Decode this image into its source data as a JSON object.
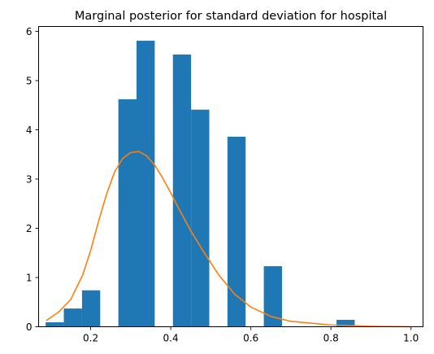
{
  "chart_data": {
    "type": "bar",
    "title": "Marginal posterior for standard deviation for hospital",
    "xlabel": "",
    "ylabel": "",
    "xlim": [
      0.07,
      1.03
    ],
    "ylim": [
      0,
      6.1
    ],
    "xticks": [
      0.2,
      0.4,
      0.6,
      0.8,
      1.0
    ],
    "xtick_labels": [
      "0.2",
      "0.4",
      "0.6",
      "0.8",
      "1.0"
    ],
    "yticks": [
      0,
      1,
      2,
      3,
      4,
      5,
      6
    ],
    "ytick_labels": [
      "0",
      "1",
      "2",
      "3",
      "4",
      "5",
      "6"
    ],
    "grid": false,
    "legend": "none",
    "histogram": {
      "color": "#1f77b4",
      "bins": [
        {
          "x0": 0.0876,
          "x1": 0.133,
          "value": 0.09
        },
        {
          "x0": 0.133,
          "x1": 0.1784,
          "value": 0.37
        },
        {
          "x0": 0.1784,
          "x1": 0.2238,
          "value": 0.74
        },
        {
          "x0": 0.2238,
          "x1": 0.2692,
          "value": 0.0
        },
        {
          "x0": 0.2692,
          "x1": 0.3146,
          "value": 4.62
        },
        {
          "x0": 0.3146,
          "x1": 0.36,
          "value": 5.81
        },
        {
          "x0": 0.36,
          "x1": 0.4054,
          "value": 0.0
        },
        {
          "x0": 0.4054,
          "x1": 0.4508,
          "value": 5.53
        },
        {
          "x0": 0.4508,
          "x1": 0.4962,
          "value": 4.41
        },
        {
          "x0": 0.4962,
          "x1": 0.5416,
          "value": 0.0
        },
        {
          "x0": 0.5416,
          "x1": 0.587,
          "value": 3.86
        },
        {
          "x0": 0.587,
          "x1": 0.6324,
          "value": 0.0
        },
        {
          "x0": 0.6324,
          "x1": 0.6778,
          "value": 1.23
        },
        {
          "x0": 0.6778,
          "x1": 0.7232,
          "value": 0.0
        },
        {
          "x0": 0.7232,
          "x1": 0.7686,
          "value": 0.0
        },
        {
          "x0": 0.7686,
          "x1": 0.814,
          "value": 0.0
        },
        {
          "x0": 0.814,
          "x1": 0.8594,
          "value": 0.14
        }
      ]
    },
    "series": [
      {
        "type": "line",
        "color": "#ff7f0e",
        "x": [
          0.09,
          0.12,
          0.15,
          0.18,
          0.2,
          0.22,
          0.24,
          0.26,
          0.28,
          0.3,
          0.32,
          0.34,
          0.36,
          0.38,
          0.4,
          0.42,
          0.45,
          0.48,
          0.52,
          0.56,
          0.6,
          0.65,
          0.7,
          0.8,
          0.9,
          1.0
        ],
        "y": [
          0.13,
          0.3,
          0.55,
          1.05,
          1.55,
          2.15,
          2.7,
          3.15,
          3.42,
          3.54,
          3.56,
          3.47,
          3.28,
          3.02,
          2.72,
          2.4,
          1.95,
          1.55,
          1.05,
          0.66,
          0.4,
          0.21,
          0.11,
          0.035,
          0.01,
          0.0
        ]
      }
    ]
  }
}
